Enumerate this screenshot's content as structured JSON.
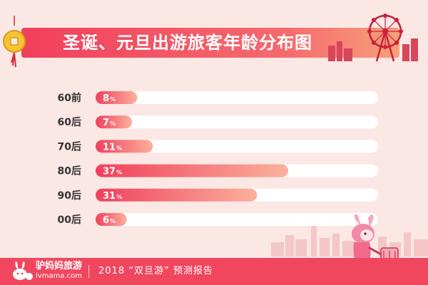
{
  "title": "圣诞、元旦出游旅客年龄分布图",
  "chart_data": {
    "type": "bar",
    "orientation": "horizontal",
    "title": "圣诞、元旦出游旅客年龄分布图",
    "categories": [
      "60前",
      "60后",
      "70后",
      "80后",
      "90后",
      "00后"
    ],
    "values": [
      8,
      7,
      11,
      37,
      31,
      6
    ],
    "value_suffix": "%",
    "xlim": [
      0,
      100
    ],
    "grid": false,
    "legend": "none"
  },
  "colors": {
    "bar_start": "#f0405d",
    "bar_end": "#fbb19c",
    "track": "#ffffff",
    "background": "#fbe7e4",
    "footer": "#f0475f",
    "category_text": "#333333"
  },
  "footer": {
    "brand": "驴妈妈旅游",
    "domain": "lvmama.com",
    "report": "2018 “双旦游” 预测报告"
  },
  "icons": [
    "coin-ornament-icon",
    "ferris-wheel-icon",
    "rabbit-logo-icon",
    "mascot-traveler-icon"
  ]
}
